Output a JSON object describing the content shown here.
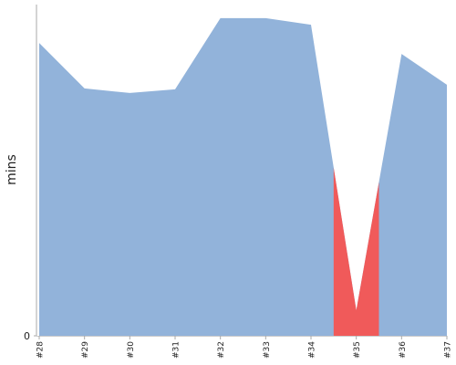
{
  "chart_data": {
    "type": "area",
    "y_label": "mins",
    "categories": [
      "#28",
      "#29",
      "#30",
      "#31",
      "#32",
      "#33",
      "#34",
      "#35",
      "#36",
      "#37"
    ],
    "values": [
      88.4,
      74.7,
      73.3,
      74.4,
      95.9,
      95.9,
      93.9,
      7.7,
      85.1,
      75.8
    ],
    "color": "#92b3da",
    "highlight_index": 7,
    "highlight_color": "#f05a5a",
    "ylim": [
      0,
      100
    ],
    "yticks": [
      0
    ]
  }
}
